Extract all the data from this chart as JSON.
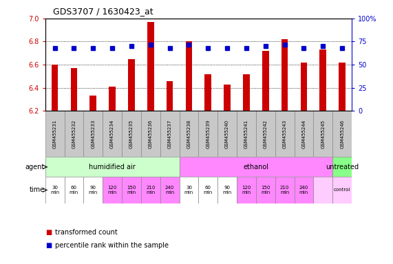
{
  "title": "GDS3707 / 1630423_at",
  "samples": [
    "GSM455231",
    "GSM455232",
    "GSM455233",
    "GSM455234",
    "GSM455235",
    "GSM455236",
    "GSM455237",
    "GSM455238",
    "GSM455239",
    "GSM455240",
    "GSM455241",
    "GSM455242",
    "GSM455243",
    "GSM455244",
    "GSM455245",
    "GSM455246"
  ],
  "transformed_count": [
    6.6,
    6.57,
    6.33,
    6.41,
    6.65,
    6.97,
    6.46,
    6.8,
    6.52,
    6.43,
    6.52,
    6.72,
    6.82,
    6.62,
    6.73,
    6.62
  ],
  "percentile_rank": [
    68,
    68,
    68,
    68,
    70,
    72,
    68,
    72,
    68,
    68,
    68,
    70,
    72,
    68,
    70,
    68
  ],
  "ylim_left": [
    6.2,
    7.0
  ],
  "ylim_right": [
    0,
    100
  ],
  "yticks_left": [
    6.2,
    6.4,
    6.6,
    6.8,
    7.0
  ],
  "yticks_right": [
    0,
    25,
    50,
    75,
    100
  ],
  "bar_color": "#cc0000",
  "dot_color": "#0000cc",
  "agent_groups": [
    {
      "label": "humidified air",
      "start": 0,
      "end": 7,
      "color": "#ccffcc"
    },
    {
      "label": "ethanol",
      "start": 7,
      "end": 15,
      "color": "#ff88ff"
    },
    {
      "label": "untreated",
      "start": 15,
      "end": 16,
      "color": "#88ff88"
    }
  ],
  "time_cell_colors": [
    "#ffffff",
    "#ffffff",
    "#ffffff",
    "#ff88ff",
    "#ff88ff",
    "#ff88ff",
    "#ff88ff",
    "#ffffff",
    "#ffffff",
    "#ffffff",
    "#ff88ff",
    "#ff88ff",
    "#ff88ff",
    "#ff88ff",
    "#ffccff",
    "#ffccff"
  ],
  "time_texts": [
    "30\nmin",
    "60\nmin",
    "90\nmin",
    "120\nmin",
    "150\nmin",
    "210\nmin",
    "240\nmin",
    "30\nmin",
    "60\nmin",
    "90\nmin",
    "120\nmin",
    "150\nmin",
    "210\nmin",
    "240\nmin",
    "",
    "control"
  ],
  "legend_items": [
    {
      "label": "transformed count",
      "color": "#cc0000"
    },
    {
      "label": "percentile rank within the sample",
      "color": "#0000cc"
    }
  ],
  "bg_color": "#ffffff",
  "tick_label_color_left": "#cc0000",
  "tick_label_color_right": "#0000cc",
  "sample_bg_color": "#c8c8c8"
}
